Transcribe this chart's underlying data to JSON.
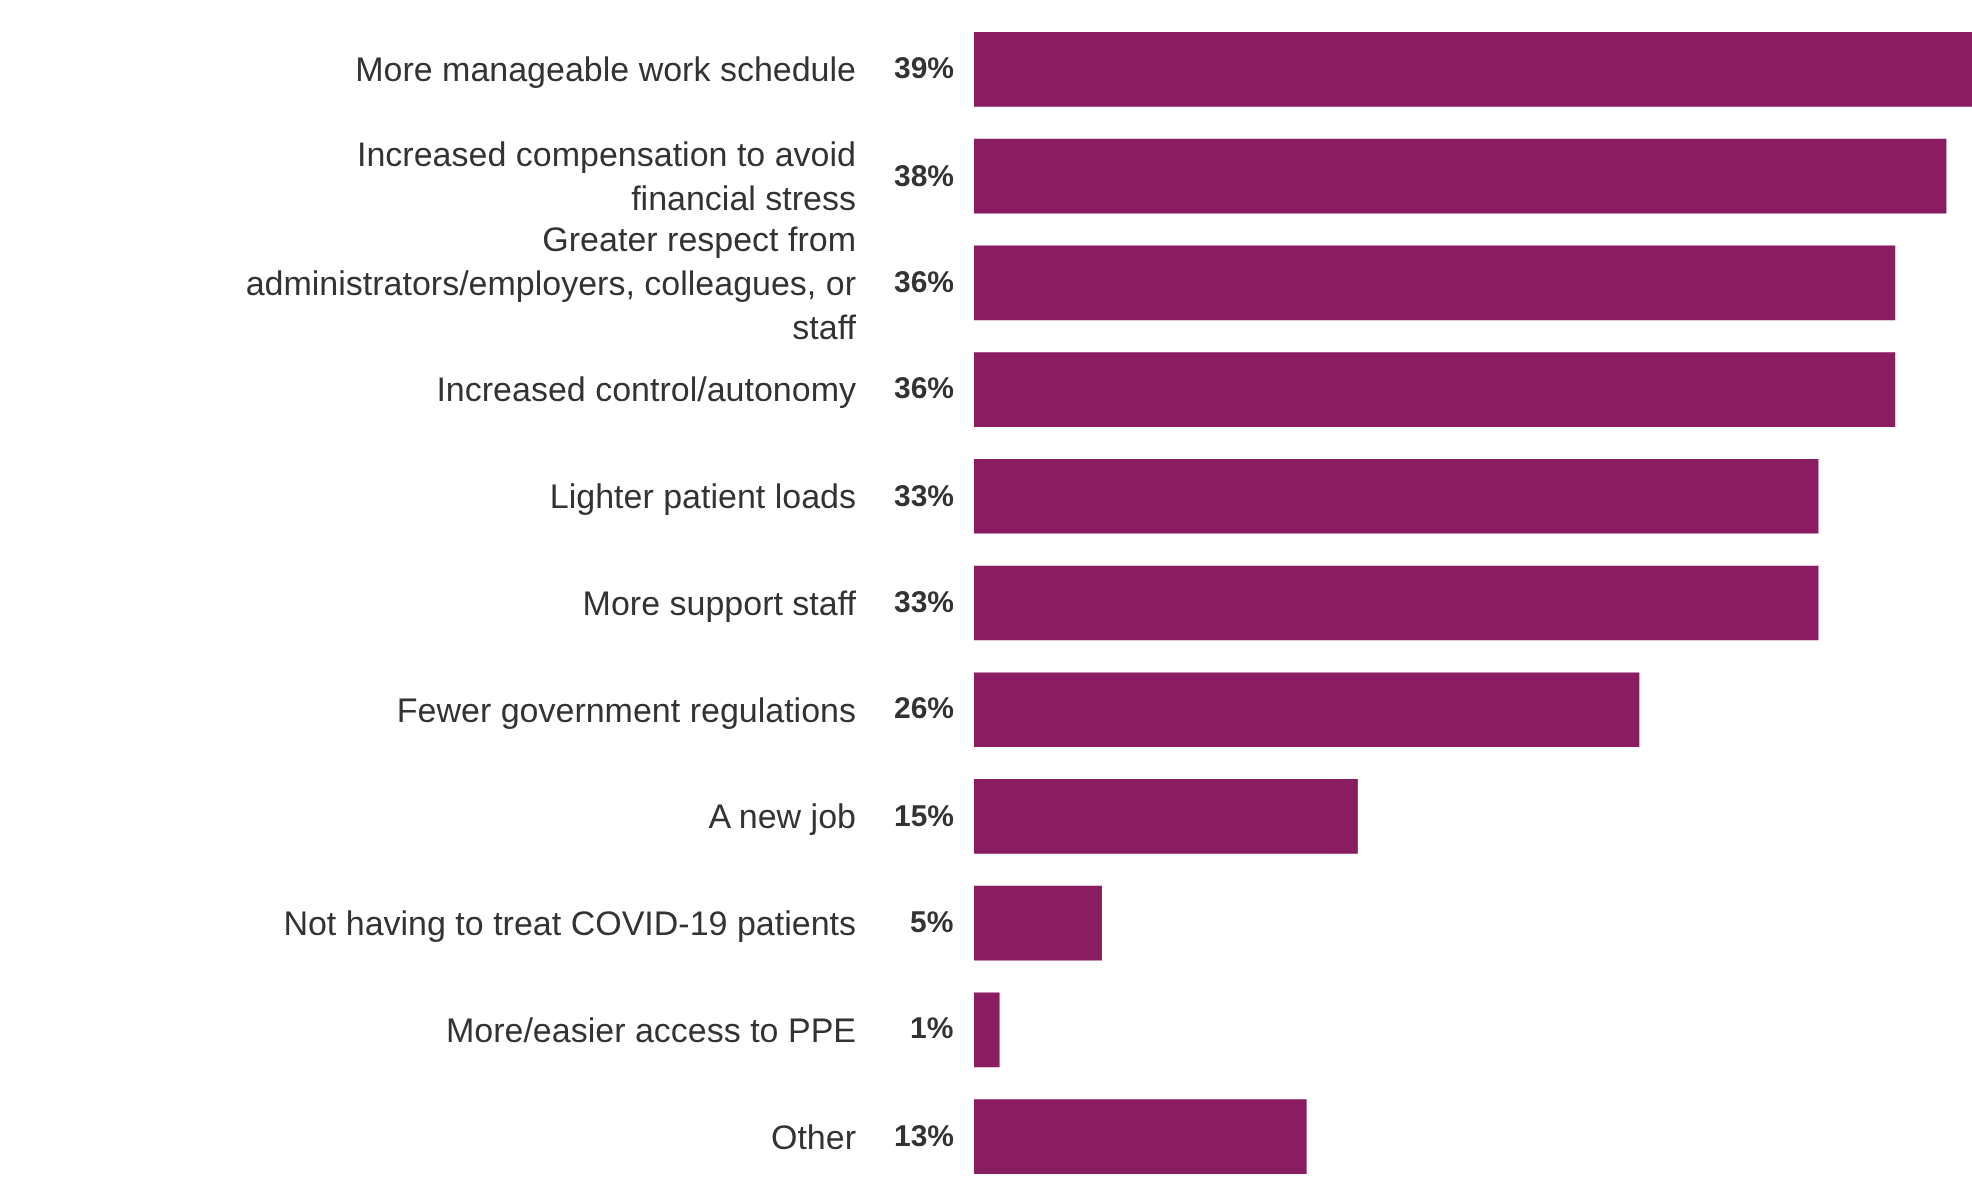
{
  "chart_data": {
    "type": "bar",
    "orientation": "horizontal",
    "categories": [
      "More manageable work schedule",
      "Increased compensation to avoid financial stress",
      "Greater respect from administrators/employers, colleagues, or staff",
      "Increased control/autonomy",
      "Lighter patient loads",
      "More support staff",
      "Fewer government regulations",
      "A new job",
      "Not having to treat COVID-19 patients",
      "More/easier access to PPE",
      "Other"
    ],
    "values": [
      39,
      38,
      36,
      36,
      33,
      33,
      26,
      15,
      5,
      1,
      13
    ],
    "value_labels": [
      "39%",
      "38%",
      "36%",
      "36%",
      "33%",
      "33%",
      "26%",
      "15%",
      "5%",
      "1%",
      "13%"
    ],
    "color": "#8a1c62"
  }
}
